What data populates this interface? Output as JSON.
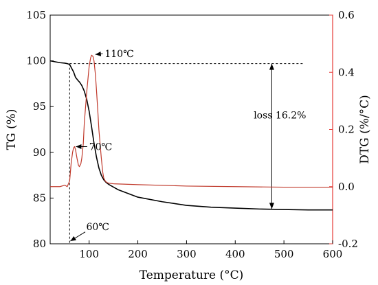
{
  "chart_data": {
    "type": "line",
    "xlabel": "Temperature (°C)",
    "ylabel_left": "TG (%)",
    "ylabel_right": "DTG (%/°C)",
    "xlim": [
      20,
      600
    ],
    "ylim_left": [
      80,
      105
    ],
    "ylim_right": [
      -0.2,
      0.6
    ],
    "x_ticks": [
      100,
      200,
      300,
      400,
      500,
      600
    ],
    "y_ticks_left": [
      80,
      85,
      90,
      95,
      100,
      105
    ],
    "y_ticks_right": [
      -0.2,
      0.0,
      0.2,
      0.4,
      0.6
    ],
    "y_tick_labels_right": [
      "-0.2",
      "0.0",
      "0.2",
      "0.4",
      "0.6"
    ],
    "grid": false,
    "colors": {
      "TG": "#000000",
      "DTG": "#c0392b",
      "right_axis": "#e53935"
    },
    "series": [
      {
        "axis": "left",
        "x": [
          20,
          40,
          50,
          55,
          60,
          62,
          65,
          68,
          70,
          72,
          75,
          78,
          80,
          85,
          90,
          95,
          100,
          105,
          110,
          115,
          120,
          125,
          130,
          135,
          140,
          150,
          160,
          180,
          200,
          250,
          300,
          350,
          400,
          450,
          500,
          550,
          600
        ],
        "y": [
          100,
          99.8,
          99.75,
          99.7,
          99.6,
          99.4,
          99.1,
          98.8,
          98.5,
          98.2,
          98.0,
          97.8,
          97.7,
          97.3,
          96.7,
          95.8,
          94.5,
          92.8,
          91.0,
          89.5,
          88.3,
          87.5,
          87.0,
          86.7,
          86.5,
          86.2,
          85.9,
          85.5,
          85.1,
          84.6,
          84.2,
          84.0,
          83.9,
          83.8,
          83.75,
          83.7,
          83.7
        ]
      },
      {
        "axis": "right",
        "x": [
          20,
          40,
          50,
          55,
          60,
          63,
          66,
          68,
          70,
          72,
          75,
          78,
          80,
          83,
          85,
          88,
          90,
          95,
          100,
          103,
          105,
          108,
          110,
          113,
          115,
          118,
          120,
          125,
          128,
          130,
          133,
          136,
          140,
          150,
          200,
          300,
          400,
          500,
          600
        ],
        "y": [
          0.0,
          0.0,
          0.005,
          0.0,
          0.02,
          0.08,
          0.12,
          0.135,
          0.14,
          0.13,
          0.1,
          0.075,
          0.07,
          0.08,
          0.1,
          0.15,
          0.22,
          0.33,
          0.42,
          0.45,
          0.46,
          0.455,
          0.44,
          0.39,
          0.34,
          0.26,
          0.2,
          0.1,
          0.05,
          0.03,
          0.02,
          0.015,
          0.012,
          0.01,
          0.007,
          0.002,
          0.0,
          -0.002,
          -0.002
        ]
      }
    ],
    "annotations": {
      "peak_110": "110℃",
      "peak_70": "70℃",
      "onset_60": "60℃",
      "loss": "loss 16.2%"
    }
  }
}
